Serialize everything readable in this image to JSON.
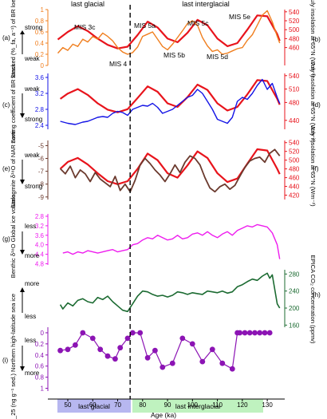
{
  "header": {
    "left": "last glacial",
    "right": "last interglacial"
  },
  "colors": {
    "insolation": "#e8141c",
    "stacked": "#f07f1f",
    "sorting": "#1414e6",
    "stalagmite": "#6b3a2e",
    "benthic": "#ee1cee",
    "epica": "#1c6b32",
    "ipso": "#8c14b4",
    "glacial_band": "#b7b7f0",
    "interglacial_band": "#bff2bf",
    "axis": "#000000"
  },
  "panels": {
    "a": {
      "tag": "(a)",
      "ylabel": "Stacked (%_fa, a⁻¹) of BR loess",
      "top": "strong",
      "bottom": "weak"
    },
    "b": {
      "tag": "(b)",
      "ylabel": "July insolation at 65°N (Wm⁻²)"
    },
    "c": {
      "tag": "(c)",
      "ylabel": "Sorting coefficient of BR loess",
      "top": "weak",
      "bottom": "strong"
    },
    "d": {
      "tag": "(d)",
      "ylabel": "July insolation at 65°N (Wm⁻²)"
    },
    "e": {
      "tag": "(e)",
      "ylabel": "Stalagmite δ¹⁸O of NAR cave",
      "top": "weak",
      "bottom": "strong"
    },
    "f": {
      "tag": "(f)",
      "ylabel": "July insolation at 65°N (Wm⁻²)"
    },
    "g": {
      "tag": "(g)",
      "ylabel": "Benthic δ¹⁸O Global ice volume",
      "top": "less",
      "bottom": "more"
    },
    "h": {
      "tag": "(h)",
      "ylabel": "EPICA CO₂ concentration (ppmv)",
      "top": "more",
      "bottom": "less"
    },
    "i": {
      "tag": "(i)",
      "ylabel": "IP_25 (ng g⁻¹ sed.) Northern high-latitude sea ice",
      "top": "less",
      "bottom": "more"
    }
  },
  "mis_labels": [
    "MIS 3c",
    "MIS 4",
    "MIS 5a",
    "MIS 5b",
    "MIS 5c",
    "MIS 5d",
    "MIS 5e"
  ],
  "bottom_bands": {
    "glacial": "last glacial",
    "interglacial": "last interglacial"
  },
  "chart_data": [
    {
      "type": "line",
      "name": "panel-a",
      "xlabel": "Age (ka)",
      "xlim": [
        42,
        137
      ],
      "ylim": [
        0,
        1
      ],
      "yticks": [
        0,
        0.2,
        0.4,
        0.6,
        0.8,
        1
      ],
      "y2lim": [
        420,
        545
      ],
      "y2ticks": [
        460,
        480,
        500,
        520,
        540
      ],
      "series": [
        {
          "axis": "left",
          "x": [
            46,
            48,
            50,
            52,
            54,
            56,
            58,
            60,
            62,
            64,
            66,
            68,
            70,
            72,
            74,
            76,
            78,
            80,
            82,
            84,
            86,
            88,
            90,
            92,
            94,
            96,
            98,
            100,
            102,
            104,
            106,
            108,
            110,
            112,
            114,
            116,
            118,
            120,
            122,
            124,
            126,
            128,
            130,
            132,
            134,
            135
          ],
          "y": [
            0.22,
            0.32,
            0.27,
            0.38,
            0.34,
            0.47,
            0.42,
            0.52,
            0.47,
            0.58,
            0.52,
            0.44,
            0.32,
            0.24,
            0.2,
            0.23,
            0.33,
            0.52,
            0.56,
            0.6,
            0.47,
            0.34,
            0.28,
            0.38,
            0.5,
            0.62,
            0.75,
            0.8,
            0.72,
            0.5,
            0.35,
            0.25,
            0.28,
            0.2,
            0.22,
            0.26,
            0.3,
            0.32,
            0.45,
            0.55,
            0.72,
            0.9,
            0.98,
            0.78,
            0.52,
            0.4
          ]
        },
        {
          "axis": "right",
          "x": [
            46,
            50,
            54,
            58,
            62,
            66,
            70,
            74,
            78,
            82,
            86,
            90,
            94,
            98,
            102,
            106,
            110,
            114,
            118,
            122,
            126,
            130,
            134,
            135
          ],
          "y": [
            478,
            495,
            508,
            497,
            480,
            466,
            458,
            462,
            488,
            518,
            505,
            480,
            472,
            493,
            522,
            510,
            480,
            463,
            470,
            500,
            532,
            530,
            490,
            475
          ]
        }
      ]
    },
    {
      "type": "line",
      "name": "panel-c",
      "xlim": [
        42,
        137
      ],
      "ylim": [
        2.3,
        3.7
      ],
      "yticks": [
        2.4,
        2.8,
        3.2,
        3.6
      ],
      "y2lim": [
        420,
        545
      ],
      "y2ticks": [
        440,
        480,
        510,
        540
      ],
      "series": [
        {
          "axis": "left",
          "x": [
            47,
            50,
            53,
            56,
            58,
            60,
            62,
            64,
            66,
            68,
            70,
            72,
            74,
            76,
            78,
            80,
            82,
            84,
            86,
            88,
            90,
            92,
            94,
            96,
            98,
            100,
            102,
            104,
            106,
            108,
            110,
            112,
            114,
            116,
            118,
            120,
            122,
            124,
            126,
            128,
            130,
            132,
            134,
            135
          ],
          "y": [
            2.5,
            2.45,
            2.42,
            2.48,
            2.5,
            2.55,
            2.6,
            2.62,
            2.6,
            2.7,
            2.75,
            2.72,
            2.65,
            2.8,
            2.85,
            2.9,
            2.88,
            2.95,
            2.85,
            2.7,
            2.75,
            2.8,
            2.9,
            3.0,
            3.1,
            3.15,
            3.3,
            3.2,
            3.0,
            2.8,
            2.55,
            2.5,
            2.45,
            2.6,
            3.0,
            3.1,
            3.05,
            3.2,
            3.4,
            3.55,
            3.3,
            3.45,
            3.1,
            2.95
          ]
        },
        {
          "axis": "right",
          "x": [
            47,
            50,
            54,
            58,
            62,
            66,
            70,
            74,
            78,
            82,
            86,
            90,
            94,
            98,
            102,
            106,
            110,
            114,
            118,
            122,
            126,
            130,
            134,
            135
          ],
          "y": [
            488,
            500,
            510,
            497,
            478,
            464,
            458,
            465,
            490,
            516,
            504,
            478,
            470,
            492,
            520,
            508,
            478,
            462,
            470,
            498,
            530,
            528,
            488,
            475
          ]
        }
      ]
    },
    {
      "type": "line",
      "name": "panel-e",
      "xlim": [
        42,
        137
      ],
      "ylim": [
        -9.2,
        -4.6
      ],
      "yticks": [
        -9,
        -8,
        -7,
        -6,
        -5
      ],
      "y2lim": [
        410,
        545
      ],
      "y2ticks": [
        420,
        440,
        460,
        480,
        500,
        520,
        540
      ],
      "series": [
        {
          "axis": "left",
          "x": [
            47,
            49,
            51,
            53,
            55,
            57,
            59,
            61,
            63,
            65,
            67,
            69,
            71,
            73,
            75,
            77,
            79,
            81,
            83,
            85,
            87,
            89,
            91,
            93,
            95,
            97,
            99,
            101,
            103,
            105,
            107,
            109,
            111,
            113,
            115,
            117,
            119,
            121,
            123,
            125,
            127,
            129,
            131,
            133,
            135
          ],
          "y": [
            -6.8,
            -7.2,
            -6.6,
            -7.5,
            -6.9,
            -7.2,
            -7.8,
            -7.1,
            -7.6,
            -7.9,
            -8.2,
            -7.4,
            -8.5,
            -8.0,
            -8.6,
            -7.7,
            -6.5,
            -6.0,
            -6.4,
            -6.9,
            -7.3,
            -7.8,
            -7.2,
            -6.5,
            -7.1,
            -6.3,
            -5.8,
            -6.0,
            -6.5,
            -7.5,
            -8.3,
            -8.6,
            -8.2,
            -8.0,
            -8.4,
            -8.1,
            -7.4,
            -6.7,
            -6.2,
            -6.0,
            -5.9,
            -6.3,
            -5.6,
            -5.3,
            -5.8
          ]
        },
        {
          "axis": "right",
          "x": [
            47,
            50,
            54,
            58,
            62,
            66,
            70,
            74,
            78,
            82,
            86,
            90,
            94,
            98,
            102,
            106,
            110,
            114,
            118,
            122,
            126,
            130,
            134,
            135
          ],
          "y": [
            480,
            496,
            505,
            490,
            470,
            452,
            445,
            452,
            480,
            515,
            500,
            470,
            460,
            488,
            520,
            505,
            470,
            450,
            458,
            492,
            525,
            522,
            480,
            468
          ]
        }
      ]
    },
    {
      "type": "line",
      "name": "panel-g",
      "xlim": [
        42,
        137
      ],
      "ylim": [
        4.85,
        2.7
      ],
      "yticks": [
        2.8,
        3.2,
        3.6,
        4.0,
        4.4,
        4.8
      ],
      "series": [
        {
          "x": [
            48,
            50,
            52,
            54,
            56,
            58,
            60,
            62,
            64,
            66,
            68,
            70,
            72,
            74,
            76,
            78,
            80,
            82,
            84,
            86,
            88,
            90,
            92,
            94,
            96,
            98,
            100,
            102,
            104,
            106,
            108,
            110,
            112,
            114,
            116,
            118,
            120,
            122,
            124,
            126,
            128,
            130,
            132,
            134,
            135
          ],
          "y": [
            4.35,
            4.3,
            4.4,
            4.3,
            4.35,
            4.25,
            4.3,
            4.35,
            4.3,
            4.25,
            4.2,
            4.3,
            4.25,
            4.2,
            4.0,
            3.95,
            3.8,
            3.7,
            3.75,
            3.6,
            3.7,
            3.8,
            3.75,
            3.6,
            3.75,
            3.7,
            3.55,
            3.5,
            3.6,
            3.45,
            3.6,
            3.7,
            3.55,
            3.45,
            3.6,
            3.4,
            3.3,
            3.2,
            3.25,
            3.15,
            3.2,
            3.25,
            3.5,
            4.0,
            4.6
          ]
        }
      ]
    },
    {
      "type": "line",
      "name": "panel-h",
      "xlim": [
        42,
        137
      ],
      "ylim": [
        155,
        290
      ],
      "yticks": [
        160,
        200,
        240,
        280
      ],
      "series": [
        {
          "x": [
            47,
            48,
            50,
            52,
            54,
            56,
            58,
            60,
            62,
            64,
            66,
            68,
            70,
            72,
            74,
            76,
            78,
            80,
            82,
            84,
            86,
            88,
            90,
            92,
            94,
            96,
            98,
            100,
            102,
            104,
            106,
            108,
            110,
            112,
            114,
            116,
            118,
            120,
            122,
            124,
            126,
            128,
            130,
            131,
            132,
            134,
            135
          ],
          "y": [
            208,
            198,
            212,
            205,
            218,
            222,
            215,
            212,
            225,
            220,
            228,
            215,
            205,
            195,
            192,
            210,
            228,
            240,
            238,
            232,
            228,
            230,
            226,
            230,
            238,
            236,
            232,
            236,
            234,
            232,
            240,
            238,
            236,
            240,
            235,
            238,
            250,
            255,
            262,
            268,
            265,
            275,
            282,
            270,
            278,
            210,
            200
          ]
        }
      ]
    },
    {
      "type": "scatter",
      "name": "panel-i",
      "xlim": [
        42,
        137
      ],
      "ylim": [
        1.05,
        -0.1
      ],
      "yticks": [
        0,
        0.2,
        0.4,
        0.6,
        0.8,
        1.0
      ],
      "series": [
        {
          "x": [
            47,
            50,
            53,
            56,
            60,
            63,
            66,
            69,
            71,
            74,
            76,
            79,
            82,
            85,
            88,
            92,
            96,
            100,
            104,
            108,
            112,
            116,
            118,
            119,
            121,
            123,
            125,
            127,
            129,
            131
          ],
          "y": [
            0.32,
            0.3,
            0.22,
            0.0,
            0.1,
            0.3,
            0.42,
            0.47,
            0.27,
            0.1,
            0.0,
            0.0,
            0.45,
            0.32,
            0.62,
            0.55,
            0.1,
            0.2,
            0.52,
            0.3,
            0.55,
            0.65,
            0.0,
            0.0,
            0.0,
            0.0,
            0.0,
            0.0,
            0.0,
            0.0
          ]
        }
      ]
    }
  ]
}
